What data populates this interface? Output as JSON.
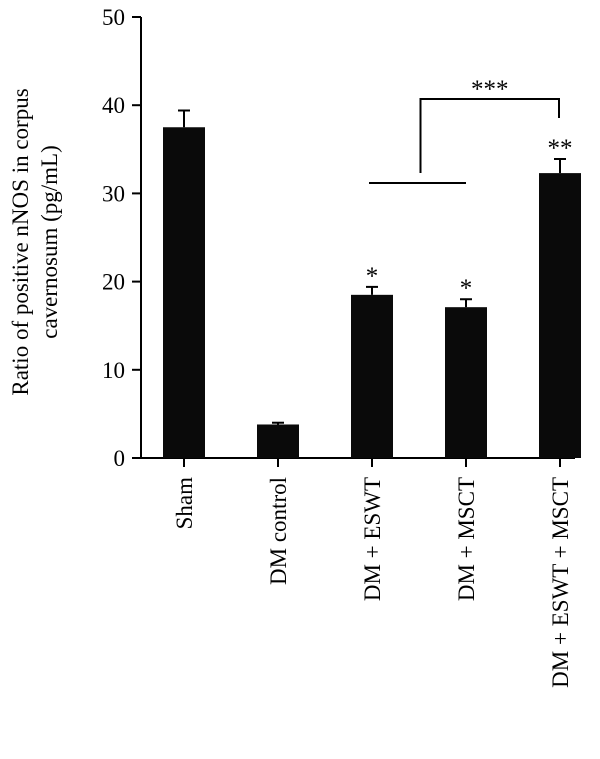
{
  "chart_data": {
    "type": "bar",
    "categories": [
      "Sham",
      "DM control",
      "DM + ESWT",
      "DM + MSCT",
      "DM + ESWT + MSCT"
    ],
    "values": [
      37.5,
      3.8,
      18.5,
      17.1,
      32.3
    ],
    "errors": [
      1.9,
      0.2,
      0.9,
      0.9,
      1.6
    ],
    "significance": [
      "",
      "",
      "*",
      "*",
      "**"
    ],
    "comparison": {
      "from_group": [
        2,
        3
      ],
      "to": 4,
      "label": "***"
    },
    "title": "",
    "xlabel": "",
    "ylabel": [
      "Ratio of positive nNOS in corpus",
      "cavernosum (pg/mL)"
    ],
    "ylim": [
      0,
      50
    ],
    "yticks": [
      0,
      10,
      20,
      30,
      40,
      50
    ],
    "bar_color": "#0a0a0a",
    "grid": false,
    "legend": "none"
  }
}
